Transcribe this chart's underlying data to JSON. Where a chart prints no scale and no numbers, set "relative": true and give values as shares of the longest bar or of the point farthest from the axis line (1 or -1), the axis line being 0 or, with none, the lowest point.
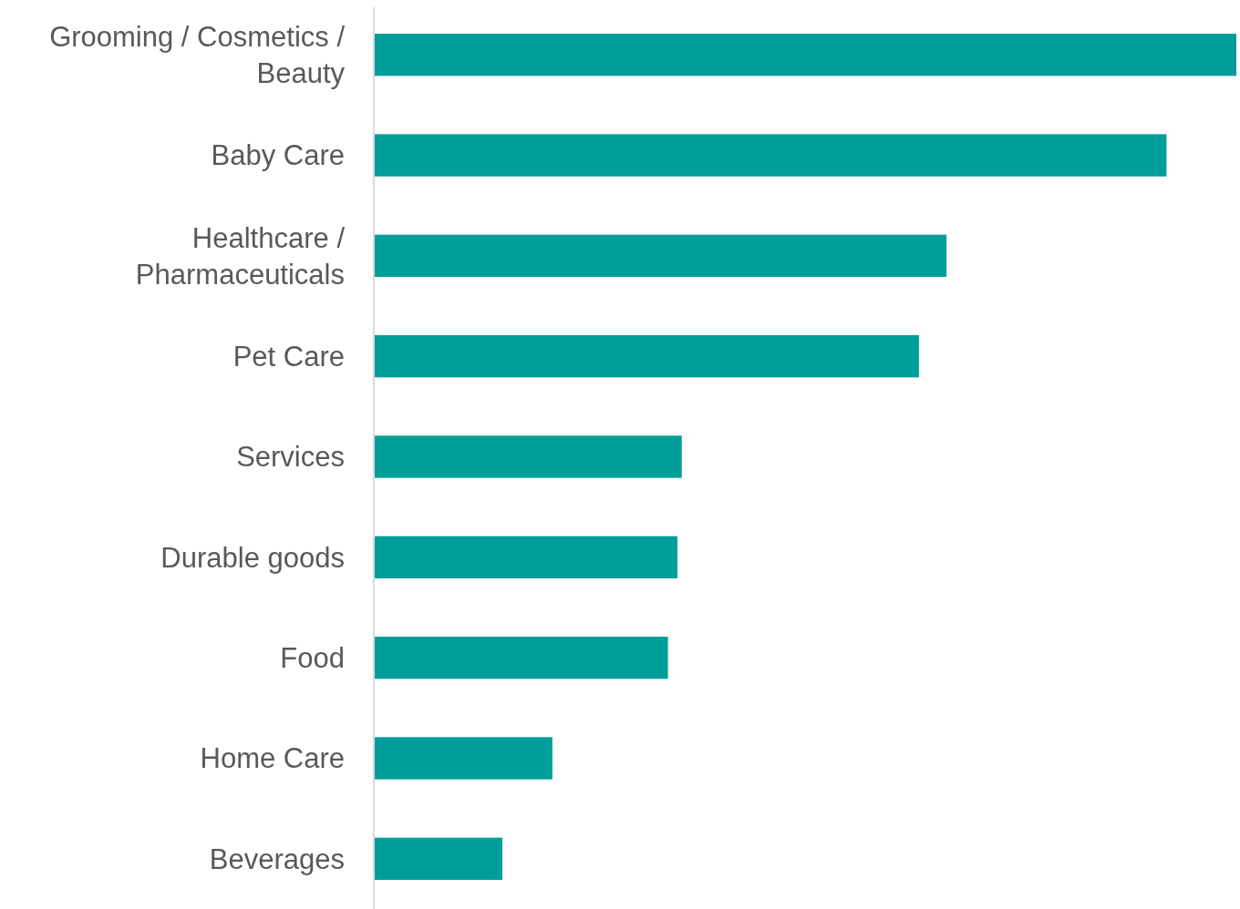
{
  "chart_data": {
    "type": "bar",
    "orientation": "horizontal",
    "relative": true,
    "categories": [
      "Grooming / Cosmetics / Beauty",
      "Baby Care",
      "Healthcare / Pharmaceuticals",
      "Pet Care",
      "Services",
      "Durable goods",
      "Food",
      "Home Care",
      "Beverages"
    ],
    "values": [
      1,
      0.919,
      0.664,
      0.632,
      0.357,
      0.352,
      0.341,
      0.207,
      0.149
    ],
    "color": "#009e9a"
  }
}
